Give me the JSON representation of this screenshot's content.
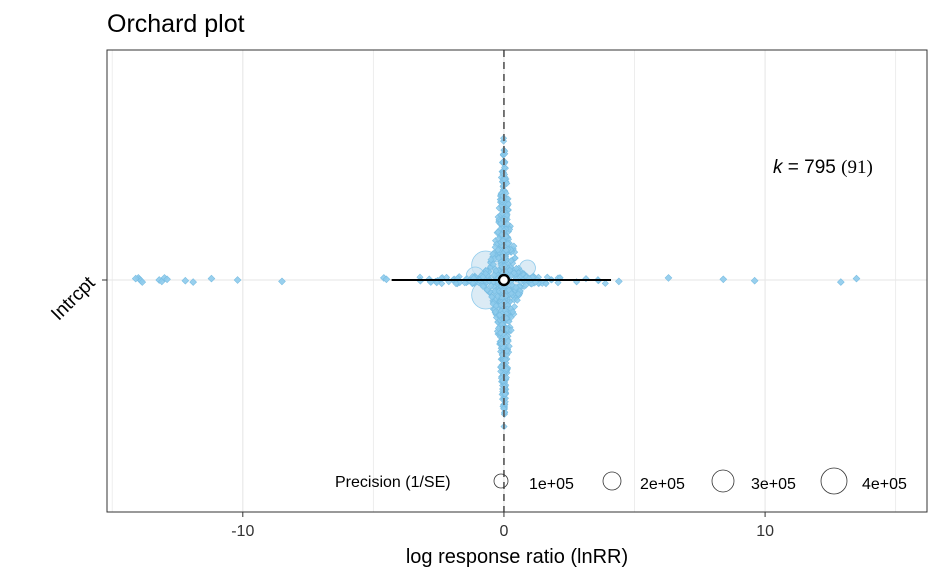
{
  "chart_data": {
    "type": "orchard",
    "title": "Orchard plot",
    "xlabel": "log response ratio (lnRR)",
    "ylabel": "",
    "xlim": [
      -15.2,
      16.2
    ],
    "x_ticks": [
      -10,
      0,
      10
    ],
    "x_tick_labels": [
      "-10",
      "0",
      "10"
    ],
    "y_categories": [
      "Intrcpt"
    ],
    "reference_line": 0,
    "grid": true,
    "estimate": {
      "label": "Intrcpt",
      "mean": 0.0,
      "ci": [
        -0.15,
        0.15
      ],
      "pi": [
        -4.3,
        4.1
      ]
    },
    "annotation": {
      "k": "795",
      "groups": "(91)"
    },
    "precision_legend": {
      "title": "Precision (1/SE)",
      "values": [
        100000,
        200000,
        300000,
        400000
      ],
      "labels": [
        "1e+05",
        "2e+05",
        "3e+05",
        "4e+05"
      ],
      "placement": "bottom-right"
    },
    "outlier_points": [
      -14.0,
      -13.95,
      -13.9,
      -13.85,
      -14.1,
      -13.2,
      -13.1,
      -13.0,
      -12.9,
      -12.2,
      -11.9,
      -11.2,
      -10.2,
      -8.5,
      -4.6,
      -4.5,
      -3.2,
      -2.8,
      -2.4,
      3.6,
      4.4,
      6.3,
      8.4,
      9.6,
      12.9,
      13.5
    ],
    "colors": {
      "points": "#8ecbec",
      "points_stroke": "#79bde2",
      "large_points": "#cfe4f2",
      "estimate": "#000000",
      "reference_line": "#555555",
      "grid": "#e9e9e9"
    }
  }
}
